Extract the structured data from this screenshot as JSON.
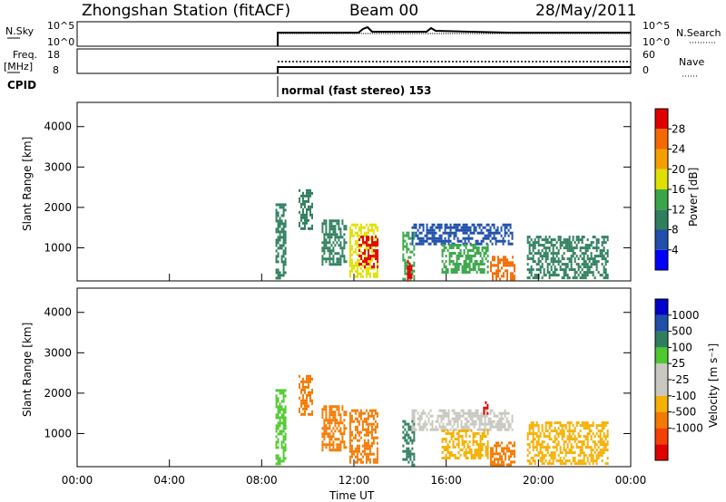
{
  "header": {
    "station": "Zhongshan Station (fitACF)",
    "beam": "Beam 00",
    "date": "28/May/2011"
  },
  "panels": {
    "nsky_label": "N.Sky",
    "nsky_ticks": [
      "10^5",
      "10^0"
    ],
    "nsearch_label": "N.Search",
    "nsearch_ticks": [
      "10^5",
      "10^0"
    ],
    "freq_label": "Freq.",
    "freq_unit": "[MHz]",
    "freq_ticks": [
      "18",
      "8"
    ],
    "nave_label": "Nave",
    "nave_ticks": [
      "60",
      "0"
    ],
    "cpid_label": "CPID",
    "cpid_text": "normal (fast stereo) 153"
  },
  "colors": {
    "power_scale": [
      "#0000ff",
      "#1f4faa",
      "#2f7f5f",
      "#3aa64a",
      "#e0e000",
      "#f5a000",
      "#f56a00",
      "#e00000"
    ],
    "velocity_scale": [
      "#e00000",
      "#f54000",
      "#f57a00",
      "#f5b000",
      "#c8c8c0",
      "#c8c8c0",
      "#50c830",
      "#2f7f5f",
      "#1f4faa",
      "#0000cc"
    ]
  },
  "chart_data": [
    {
      "type": "heatmap",
      "title": "",
      "xlabel": "Time UT",
      "ylabel": "Slant Range [km]",
      "x_ticks": [
        "00:00",
        "04:00",
        "08:00",
        "12:00",
        "16:00",
        "20:00",
        "00:00"
      ],
      "y_ticks": [
        1000,
        2000,
        3000,
        4000
      ],
      "xlim_hours": [
        0,
        24
      ],
      "ylim_km": [
        180,
        4600
      ],
      "colorbar": {
        "label": "Power [dB]",
        "ticks": [
          4,
          8,
          12,
          16,
          20,
          24,
          28
        ]
      },
      "echo_regions": [
        {
          "t0": 8.6,
          "t1": 9.0,
          "r0": 250,
          "r1": 2100,
          "level": 2
        },
        {
          "t0": 9.6,
          "t1": 10.2,
          "r0": 1500,
          "r1": 2450,
          "level": 2
        },
        {
          "t0": 10.6,
          "t1": 11.7,
          "r0": 600,
          "r1": 1700,
          "level": 2
        },
        {
          "t0": 11.8,
          "t1": 13.0,
          "r0": 300,
          "r1": 1600,
          "level": 4
        },
        {
          "t0": 12.2,
          "t1": 13.0,
          "r0": 500,
          "r1": 1300,
          "level": 7
        },
        {
          "t0": 14.1,
          "t1": 14.6,
          "r0": 200,
          "r1": 1400,
          "level": 3
        },
        {
          "t0": 14.3,
          "t1": 14.5,
          "r0": 200,
          "r1": 700,
          "level": 7
        },
        {
          "t0": 14.5,
          "t1": 18.9,
          "r0": 1100,
          "r1": 1600,
          "level": 1
        },
        {
          "t0": 15.8,
          "t1": 17.8,
          "r0": 400,
          "r1": 1100,
          "level": 3
        },
        {
          "t0": 17.9,
          "t1": 19.0,
          "r0": 200,
          "r1": 800,
          "level": 6
        },
        {
          "t0": 19.5,
          "t1": 23.0,
          "r0": 250,
          "r1": 1300,
          "level": 2
        }
      ]
    },
    {
      "type": "heatmap",
      "title": "",
      "xlabel": "Time UT",
      "ylabel": "Slant Range [km]",
      "x_ticks": [
        "00:00",
        "04:00",
        "08:00",
        "12:00",
        "16:00",
        "20:00",
        "00:00"
      ],
      "y_ticks": [
        1000,
        2000,
        3000,
        4000
      ],
      "xlim_hours": [
        0,
        24
      ],
      "ylim_km": [
        180,
        4600
      ],
      "colorbar": {
        "label": "Velocity [m s⁻¹]",
        "ticks": [
          1000,
          500,
          100,
          25,
          -25,
          -100,
          -500,
          -1000
        ]
      },
      "echo_regions": [
        {
          "t0": 8.6,
          "t1": 9.0,
          "r0": 250,
          "r1": 2100,
          "level": 6
        },
        {
          "t0": 9.6,
          "t1": 10.2,
          "r0": 1500,
          "r1": 2450,
          "level": 2
        },
        {
          "t0": 10.6,
          "t1": 11.7,
          "r0": 600,
          "r1": 1700,
          "level": 2
        },
        {
          "t0": 11.8,
          "t1": 13.0,
          "r0": 300,
          "r1": 1600,
          "level": 2
        },
        {
          "t0": 14.1,
          "t1": 14.6,
          "r0": 200,
          "r1": 1400,
          "level": 7
        },
        {
          "t0": 14.5,
          "t1": 18.9,
          "r0": 1100,
          "r1": 1600,
          "level": 4
        },
        {
          "t0": 17.6,
          "t1": 17.8,
          "r0": 1500,
          "r1": 1800,
          "level": 0
        },
        {
          "t0": 15.8,
          "t1": 17.8,
          "r0": 400,
          "r1": 1100,
          "level": 3
        },
        {
          "t0": 17.9,
          "t1": 19.0,
          "r0": 200,
          "r1": 800,
          "level": 2
        },
        {
          "t0": 19.5,
          "t1": 23.0,
          "r0": 250,
          "r1": 1300,
          "level": 3
        }
      ]
    }
  ]
}
